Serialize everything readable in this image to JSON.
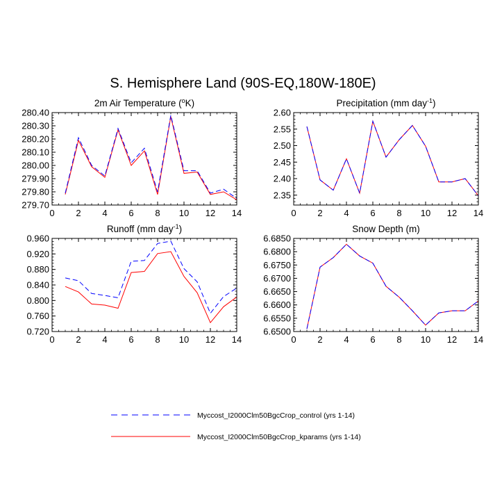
{
  "figure_title": "S. Hemisphere Land (90S-EQ,180W-180E)",
  "legend": {
    "entries": [
      {
        "label": "Myccost_I2000Clm50BgcCrop_control (yrs 1-14)",
        "color": "#0000ff",
        "style": "dashed"
      },
      {
        "label": "Myccost_I2000Clm50BgcCrop_kparams (yrs 1-14)",
        "color": "#ff0000",
        "style": "solid"
      }
    ]
  },
  "chart_data": [
    {
      "type": "line",
      "title": "2m Air Temperature (",
      "title_sup": "o",
      "title_tail": "K)",
      "xlim": [
        0,
        14
      ],
      "ylim": [
        279.7,
        280.4
      ],
      "x_ticks": [
        0,
        2,
        4,
        6,
        8,
        10,
        12,
        14
      ],
      "x_tick_labels": [
        "0",
        "2",
        "4",
        "6",
        "8",
        "10",
        "12",
        "14"
      ],
      "y_ticks": [
        279.7,
        279.8,
        279.9,
        280.0,
        280.1,
        280.2,
        280.3,
        280.4
      ],
      "y_tick_labels": [
        "279.70",
        "279.80",
        "279.90",
        "280.00",
        "280.10",
        "280.20",
        "280.30",
        "280.40"
      ],
      "x": [
        1,
        2,
        3,
        4,
        5,
        6,
        7,
        8,
        9,
        10,
        11,
        12,
        13,
        14
      ],
      "series": [
        {
          "name": "Myccost_I2000Clm50BgcCrop_control (yrs 1-14)",
          "color": "#0000ff",
          "style": "dashed",
          "values": [
            279.79,
            280.21,
            280.0,
            279.92,
            280.28,
            280.02,
            280.13,
            279.8,
            280.38,
            279.96,
            279.96,
            279.79,
            279.82,
            279.75
          ]
        },
        {
          "name": "Myccost_I2000Clm50BgcCrop_kparams (yrs 1-14)",
          "color": "#ff0000",
          "style": "solid",
          "values": [
            279.78,
            280.19,
            279.99,
            279.91,
            280.27,
            280.0,
            280.11,
            279.78,
            280.37,
            279.94,
            279.95,
            279.78,
            279.8,
            279.74
          ]
        }
      ]
    },
    {
      "type": "line",
      "title": "Precipitation (mm day",
      "title_sup": "-1",
      "title_tail": ")",
      "xlim": [
        0,
        14
      ],
      "ylim": [
        2.32,
        2.6
      ],
      "x_ticks": [
        0,
        2,
        4,
        6,
        8,
        10,
        12,
        14
      ],
      "x_tick_labels": [
        "0",
        "2",
        "4",
        "6",
        "8",
        "10",
        "12",
        "14"
      ],
      "y_ticks": [
        2.35,
        2.4,
        2.45,
        2.5,
        2.55,
        2.6
      ],
      "y_tick_labels": [
        "2.35",
        "2.40",
        "2.45",
        "2.50",
        "2.55",
        "2.60"
      ],
      "x": [
        1,
        2,
        3,
        4,
        5,
        6,
        7,
        8,
        9,
        10,
        11,
        12,
        13,
        14
      ],
      "series": [
        {
          "name": "Myccost_I2000Clm50BgcCrop_control (yrs 1-14)",
          "color": "#0000ff",
          "style": "dashed",
          "values": [
            2.558,
            2.396,
            2.365,
            2.46,
            2.356,
            2.574,
            2.465,
            2.518,
            2.561,
            2.498,
            2.39,
            2.39,
            2.4,
            2.348
          ]
        },
        {
          "name": "Myccost_I2000Clm50BgcCrop_kparams (yrs 1-14)",
          "color": "#ff0000",
          "style": "solid",
          "values": [
            2.558,
            2.396,
            2.365,
            2.46,
            2.356,
            2.574,
            2.465,
            2.518,
            2.561,
            2.498,
            2.39,
            2.39,
            2.4,
            2.348
          ]
        }
      ]
    },
    {
      "type": "line",
      "title": "Runoff (mm day",
      "title_sup": "-1",
      "title_tail": ")",
      "xlim": [
        0,
        14
      ],
      "ylim": [
        0.72,
        0.96
      ],
      "x_ticks": [
        0,
        2,
        4,
        6,
        8,
        10,
        12,
        14
      ],
      "x_tick_labels": [
        "0",
        "2",
        "4",
        "6",
        "8",
        "10",
        "12",
        "14"
      ],
      "y_ticks": [
        0.72,
        0.76,
        0.8,
        0.84,
        0.88,
        0.92,
        0.96
      ],
      "y_tick_labels": [
        "0.720",
        "0.760",
        "0.800",
        "0.840",
        "0.880",
        "0.920",
        "0.960"
      ],
      "x": [
        1,
        2,
        3,
        4,
        5,
        6,
        7,
        8,
        9,
        10,
        11,
        12,
        13,
        14
      ],
      "series": [
        {
          "name": "Myccost_I2000Clm50BgcCrop_control (yrs 1-14)",
          "color": "#0000ff",
          "style": "dashed",
          "values": [
            0.858,
            0.851,
            0.818,
            0.813,
            0.807,
            0.901,
            0.903,
            0.947,
            0.953,
            0.882,
            0.848,
            0.767,
            0.81,
            0.832
          ]
        },
        {
          "name": "Myccost_I2000Clm50BgcCrop_kparams (yrs 1-14)",
          "color": "#ff0000",
          "style": "solid",
          "values": [
            0.836,
            0.822,
            0.791,
            0.788,
            0.78,
            0.872,
            0.875,
            0.921,
            0.926,
            0.862,
            0.82,
            0.743,
            0.784,
            0.809
          ]
        }
      ]
    },
    {
      "type": "line",
      "title": "Snow Depth (m)",
      "title_sup": "",
      "title_tail": "",
      "xlim": [
        0,
        14
      ],
      "ylim": [
        6.65,
        6.685
      ],
      "x_ticks": [
        0,
        2,
        4,
        6,
        8,
        10,
        12,
        14
      ],
      "x_tick_labels": [
        "0",
        "2",
        "4",
        "6",
        "8",
        "10",
        "12",
        "14"
      ],
      "y_ticks": [
        6.65,
        6.655,
        6.66,
        6.665,
        6.67,
        6.675,
        6.68,
        6.685
      ],
      "y_tick_labels": [
        "6.6500",
        "6.6550",
        "6.6600",
        "6.6650",
        "6.6700",
        "6.6750",
        "6.6800",
        "6.6850"
      ],
      "x": [
        1,
        2,
        3,
        4,
        5,
        6,
        7,
        8,
        9,
        10,
        11,
        12,
        13,
        14
      ],
      "series": [
        {
          "name": "Myccost_I2000Clm50BgcCrop_control (yrs 1-14)",
          "color": "#0000ff",
          "style": "dashed",
          "values": [
            6.651,
            6.6742,
            6.6778,
            6.6828,
            6.6784,
            6.6757,
            6.667,
            6.6629,
            6.6578,
            6.6524,
            6.657,
            6.6578,
            6.6578,
            6.6615
          ]
        },
        {
          "name": "Myccost_I2000Clm50BgcCrop_kparams (yrs 1-14)",
          "color": "#ff0000",
          "style": "solid",
          "values": [
            6.651,
            6.6742,
            6.6778,
            6.6828,
            6.6784,
            6.6757,
            6.667,
            6.6629,
            6.6578,
            6.6524,
            6.657,
            6.6578,
            6.6578,
            6.6615
          ]
        }
      ]
    }
  ]
}
